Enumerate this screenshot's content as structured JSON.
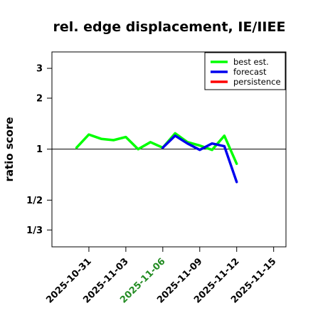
{
  "chart_data": {
    "type": "line",
    "title": "rel. edge displacement, IE/IIEE",
    "xlabel": "",
    "ylabel": "ratio score",
    "y_scale": "log",
    "ylim": [
      0.265,
      3.75
    ],
    "xlim": [
      "2025-10-28",
      "2025-11-16"
    ],
    "y_ticks": [
      {
        "value": 3,
        "label": "3"
      },
      {
        "value": 2,
        "label": "2"
      },
      {
        "value": 1,
        "label": "1"
      },
      {
        "value": 0.5,
        "label": "1/2"
      },
      {
        "value": 0.3333,
        "label": "1/3"
      }
    ],
    "x_ticks": [
      {
        "date": "2025-10-31",
        "label": "2025-10-31",
        "color": "#000000"
      },
      {
        "date": "2025-11-03",
        "label": "2025-11-03",
        "color": "#000000"
      },
      {
        "date": "2025-11-06",
        "label": "2025-11-06",
        "color": "#228B22"
      },
      {
        "date": "2025-11-09",
        "label": "2025-11-09",
        "color": "#000000"
      },
      {
        "date": "2025-11-12",
        "label": "2025-11-12",
        "color": "#000000"
      },
      {
        "date": "2025-11-15",
        "label": "2025-11-15",
        "color": "#000000"
      }
    ],
    "reference_line": 1,
    "legend_position": "top-right",
    "series": [
      {
        "name": "best est.",
        "color": "#00ff00",
        "points": [
          {
            "x": "2025-10-30",
            "y": 1.02
          },
          {
            "x": "2025-10-31",
            "y": 1.22
          },
          {
            "x": "2025-11-01",
            "y": 1.15
          },
          {
            "x": "2025-11-02",
            "y": 1.13
          },
          {
            "x": "2025-11-03",
            "y": 1.18
          },
          {
            "x": "2025-11-04",
            "y": 1.0
          },
          {
            "x": "2025-11-05",
            "y": 1.1
          },
          {
            "x": "2025-11-06",
            "y": 1.02
          },
          {
            "x": "2025-11-07",
            "y": 1.24
          },
          {
            "x": "2025-11-08",
            "y": 1.1
          },
          {
            "x": "2025-11-09",
            "y": 1.05
          },
          {
            "x": "2025-11-10",
            "y": 0.99
          },
          {
            "x": "2025-11-11",
            "y": 1.2
          },
          {
            "x": "2025-11-12",
            "y": 0.82
          }
        ]
      },
      {
        "name": "forecast",
        "color": "#0000ee",
        "points": [
          {
            "x": "2025-11-06",
            "y": 1.02
          },
          {
            "x": "2025-11-07",
            "y": 1.2
          },
          {
            "x": "2025-11-08",
            "y": 1.08
          },
          {
            "x": "2025-11-09",
            "y": 0.99
          },
          {
            "x": "2025-11-10",
            "y": 1.08
          },
          {
            "x": "2025-11-11",
            "y": 1.04
          },
          {
            "x": "2025-11-12",
            "y": 0.64
          }
        ]
      },
      {
        "name": "persistence",
        "color": "#ff0000",
        "points": []
      }
    ]
  }
}
